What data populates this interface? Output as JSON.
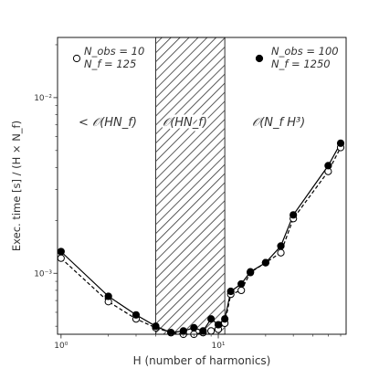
{
  "chart_data": {
    "type": "line",
    "xscale": "log",
    "yscale": "log",
    "xlim": [
      0.95,
      65
    ],
    "ylim": [
      0.00045,
      0.022
    ],
    "xlabel": "H (number of harmonics)",
    "ylabel": "Exec. time [s] / (H × N_f)",
    "xticks": [
      {
        "value": 1,
        "label": "10⁰"
      },
      {
        "value": 10,
        "label": "10¹"
      }
    ],
    "yticks": [
      {
        "value": 0.001,
        "label": "10⁻³"
      },
      {
        "value": 0.01,
        "label": "10⁻²"
      }
    ],
    "grid": false,
    "shaded_region": {
      "x_from": 4,
      "x_to": 11,
      "pattern": "hatched"
    },
    "regime_annotations": [
      {
        "text": "< 𝒪(HN_f)",
        "position": "left"
      },
      {
        "text": "𝒪(HN_f)",
        "position": "center"
      },
      {
        "text": "𝒪(N_f H³)",
        "position": "right"
      }
    ],
    "series": [
      {
        "name": "N_obs = 10, N_f = 125",
        "legend_line1": "N_obs = 10",
        "legend_line2": "N_f = 125",
        "marker": "open-circle",
        "linestyle": "dashed",
        "color": "#000000",
        "x": [
          1,
          2,
          3,
          4,
          5,
          6,
          7,
          8,
          9,
          10,
          11,
          12,
          14,
          16,
          20,
          25,
          30,
          50,
          60
        ],
        "y": [
          0.00122,
          0.00069,
          0.00055,
          0.00049,
          0.00046,
          0.00045,
          0.00045,
          0.00046,
          0.00047,
          0.00048,
          0.00052,
          0.00076,
          0.0008,
          0.00101,
          0.00115,
          0.00131,
          0.00205,
          0.0038,
          0.0052
        ]
      },
      {
        "name": "N_obs = 100, N_f = 1250",
        "legend_line1": "N_obs = 100",
        "legend_line2": "N_f = 1250",
        "marker": "filled-circle",
        "linestyle": "solid",
        "color": "#000000",
        "x": [
          1,
          2,
          3,
          4,
          5,
          6,
          7,
          8,
          9,
          10,
          11,
          12,
          14,
          16,
          20,
          25,
          30,
          50,
          60
        ],
        "y": [
          0.00133,
          0.00074,
          0.00058,
          0.0005,
          0.00046,
          0.00047,
          0.00049,
          0.00047,
          0.00055,
          0.00051,
          0.00055,
          0.00079,
          0.00087,
          0.00102,
          0.00115,
          0.00143,
          0.00215,
          0.0041,
          0.0055
        ]
      }
    ],
    "legend": {
      "placement": "top, one entry per side of the shaded region"
    }
  }
}
